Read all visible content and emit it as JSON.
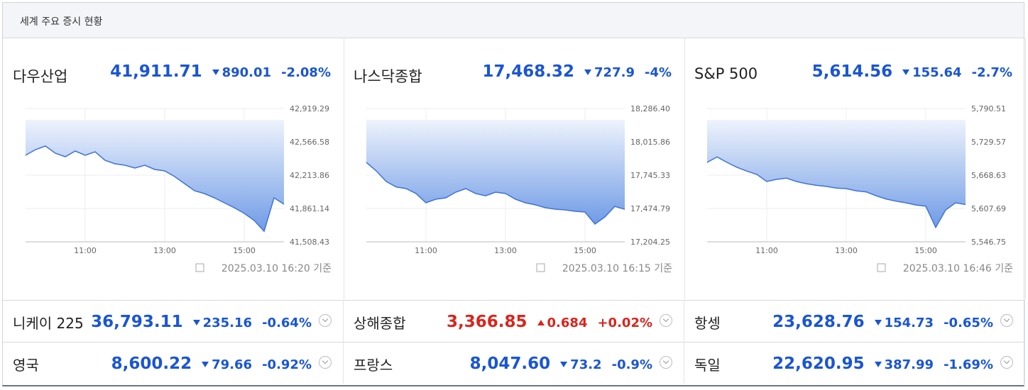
{
  "header": {
    "title": "세계 주요 증시 현황"
  },
  "panels": [
    {
      "name": "다우산업",
      "price": "41,911.71",
      "change": "890.01",
      "change_pct": "-2.08%",
      "direction": "down",
      "timestamp": "2025.03.10 16:20 기준"
    },
    {
      "name": "나스닥종합",
      "price": "17,468.32",
      "change": "727.9",
      "change_pct": "-4%",
      "direction": "down",
      "timestamp": "2025.03.10 16:15 기준"
    },
    {
      "name": "S&P 500",
      "price": "5,614.56",
      "change": "155.64",
      "change_pct": "-2.7%",
      "direction": "down",
      "timestamp": "2025.03.10 16:46 기준"
    }
  ],
  "chart_data": [
    {
      "type": "area",
      "color": "#3f73d8",
      "grid": true,
      "x": [
        9.5,
        9.75,
        10,
        10.25,
        10.5,
        10.75,
        11,
        11.25,
        11.5,
        11.75,
        12,
        12.25,
        12.5,
        12.75,
        13,
        13.25,
        13.5,
        13.75,
        14,
        14.25,
        14.5,
        14.75,
        15,
        15.25,
        15.5,
        15.75,
        16
      ],
      "values": [
        42424,
        42484,
        42522,
        42446,
        42409,
        42469,
        42424,
        42461,
        42371,
        42334,
        42319,
        42289,
        42319,
        42274,
        42259,
        42199,
        42124,
        42049,
        42019,
        41974,
        41921,
        41869,
        41809,
        41734,
        41620,
        41974,
        41906
      ],
      "xlim": [
        9.5,
        16
      ],
      "ylim": [
        41508.43,
        42919.29
      ],
      "xticks": [
        {
          "value": 11,
          "label": "11:00"
        },
        {
          "value": 13,
          "label": "13:00"
        },
        {
          "value": 15,
          "label": "15:00"
        }
      ],
      "yticks": [
        {
          "value": 41508.43,
          "label": "41,508.43"
        },
        {
          "value": 41861.14,
          "label": "41,861.14"
        },
        {
          "value": 42213.86,
          "label": "42,213.86"
        },
        {
          "value": 42566.58,
          "label": "42,566.58"
        },
        {
          "value": 42919.29,
          "label": "42,919.29"
        }
      ]
    },
    {
      "type": "area",
      "color": "#3f73d8",
      "grid": true,
      "x": [
        9.5,
        9.75,
        10,
        10.25,
        10.5,
        10.75,
        11,
        11.25,
        11.5,
        11.75,
        12,
        12.25,
        12.5,
        12.75,
        13,
        13.25,
        13.5,
        13.75,
        14,
        14.25,
        14.5,
        14.75,
        15,
        15.25,
        15.5,
        15.75,
        16
      ],
      "values": [
        17849,
        17780,
        17694,
        17650,
        17636,
        17596,
        17521,
        17550,
        17561,
        17607,
        17636,
        17596,
        17578,
        17607,
        17596,
        17550,
        17521,
        17504,
        17481,
        17469,
        17463,
        17452,
        17446,
        17348,
        17406,
        17492,
        17468
      ],
      "xlim": [
        9.5,
        16
      ],
      "ylim": [
        17204.25,
        18286.4
      ],
      "xticks": [
        {
          "value": 11,
          "label": "11:00"
        },
        {
          "value": 13,
          "label": "13:00"
        },
        {
          "value": 15,
          "label": "15:00"
        }
      ],
      "yticks": [
        {
          "value": 17204.25,
          "label": "17,204.25"
        },
        {
          "value": 17474.79,
          "label": "17,474.79"
        },
        {
          "value": 17745.33,
          "label": "17,745.33"
        },
        {
          "value": 18015.86,
          "label": "18,015.86"
        },
        {
          "value": 18286.4,
          "label": "18,286.40"
        }
      ]
    },
    {
      "type": "area",
      "color": "#3f73d8",
      "grid": true,
      "x": [
        9.5,
        9.75,
        10,
        10.25,
        10.5,
        10.75,
        11,
        11.25,
        11.5,
        11.75,
        12,
        12.25,
        12.5,
        12.75,
        13,
        13.25,
        13.5,
        13.75,
        14,
        14.25,
        14.5,
        14.75,
        15,
        15.25,
        15.5,
        15.75,
        16
      ],
      "values": [
        5692,
        5702,
        5692,
        5683,
        5676,
        5670,
        5657,
        5661,
        5663,
        5657,
        5653,
        5650,
        5648,
        5645,
        5644,
        5640,
        5638,
        5631,
        5625,
        5621,
        5618,
        5614,
        5612,
        5573,
        5605,
        5618,
        5615
      ],
      "xlim": [
        9.5,
        16
      ],
      "ylim": [
        5546.75,
        5790.51
      ],
      "xticks": [
        {
          "value": 11,
          "label": "11:00"
        },
        {
          "value": 13,
          "label": "13:00"
        },
        {
          "value": 15,
          "label": "15:00"
        }
      ],
      "yticks": [
        {
          "value": 5546.75,
          "label": "5,546.75"
        },
        {
          "value": 5607.69,
          "label": "5,607.69"
        },
        {
          "value": 5668.63,
          "label": "5,668.63"
        },
        {
          "value": 5729.57,
          "label": "5,729.57"
        },
        {
          "value": 5790.51,
          "label": "5,790.51"
        }
      ]
    }
  ],
  "markets": [
    {
      "name": "니케이 225",
      "price": "36,793.11",
      "change": "235.16",
      "change_pct": "-0.64%",
      "direction": "down"
    },
    {
      "name": "상해종합",
      "price": "3,366.85",
      "change": "0.684",
      "change_pct": "+0.02%",
      "direction": "up"
    },
    {
      "name": "항셍",
      "price": "23,628.76",
      "change": "154.73",
      "change_pct": "-0.65%",
      "direction": "down"
    },
    {
      "name": "영국",
      "price": "8,600.22",
      "change": "79.66",
      "change_pct": "-0.92%",
      "direction": "down"
    },
    {
      "name": "프랑스",
      "price": "8,047.60",
      "change": "73.2",
      "change_pct": "-0.9%",
      "direction": "down"
    },
    {
      "name": "독일",
      "price": "22,620.95",
      "change": "387.99",
      "change_pct": "-1.69%",
      "direction": "down"
    }
  ]
}
